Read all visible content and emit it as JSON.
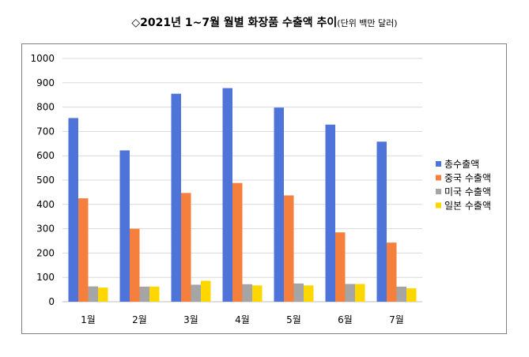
{
  "chart_data": {
    "type": "bar",
    "title": "◇2021년 1~7월 월별 화장품 수출액 추이",
    "unit": "(단위 백만 달러)",
    "categories": [
      "1월",
      "2월",
      "3월",
      "4월",
      "5월",
      "6월",
      "7월"
    ],
    "series": [
      {
        "name": "총수출액",
        "color": "#4f74d9",
        "values": [
          755,
          622,
          855,
          878,
          798,
          728,
          658
        ]
      },
      {
        "name": "중국 수출액",
        "color": "#f5803e",
        "values": [
          425,
          300,
          447,
          488,
          437,
          285,
          243
        ]
      },
      {
        "name": "미국 수출액",
        "color": "#a5a5a5",
        "values": [
          63,
          62,
          70,
          72,
          75,
          73,
          62
        ]
      },
      {
        "name": "일본 수출액",
        "color": "#ffd700",
        "values": [
          58,
          62,
          86,
          67,
          67,
          73,
          55
        ]
      }
    ],
    "ylim": [
      0,
      1000
    ],
    "yticks": [
      0,
      100,
      200,
      300,
      400,
      500,
      600,
      700,
      800,
      900,
      1000
    ],
    "xlabel": "",
    "ylabel": "",
    "grid": true,
    "legend": "right"
  }
}
